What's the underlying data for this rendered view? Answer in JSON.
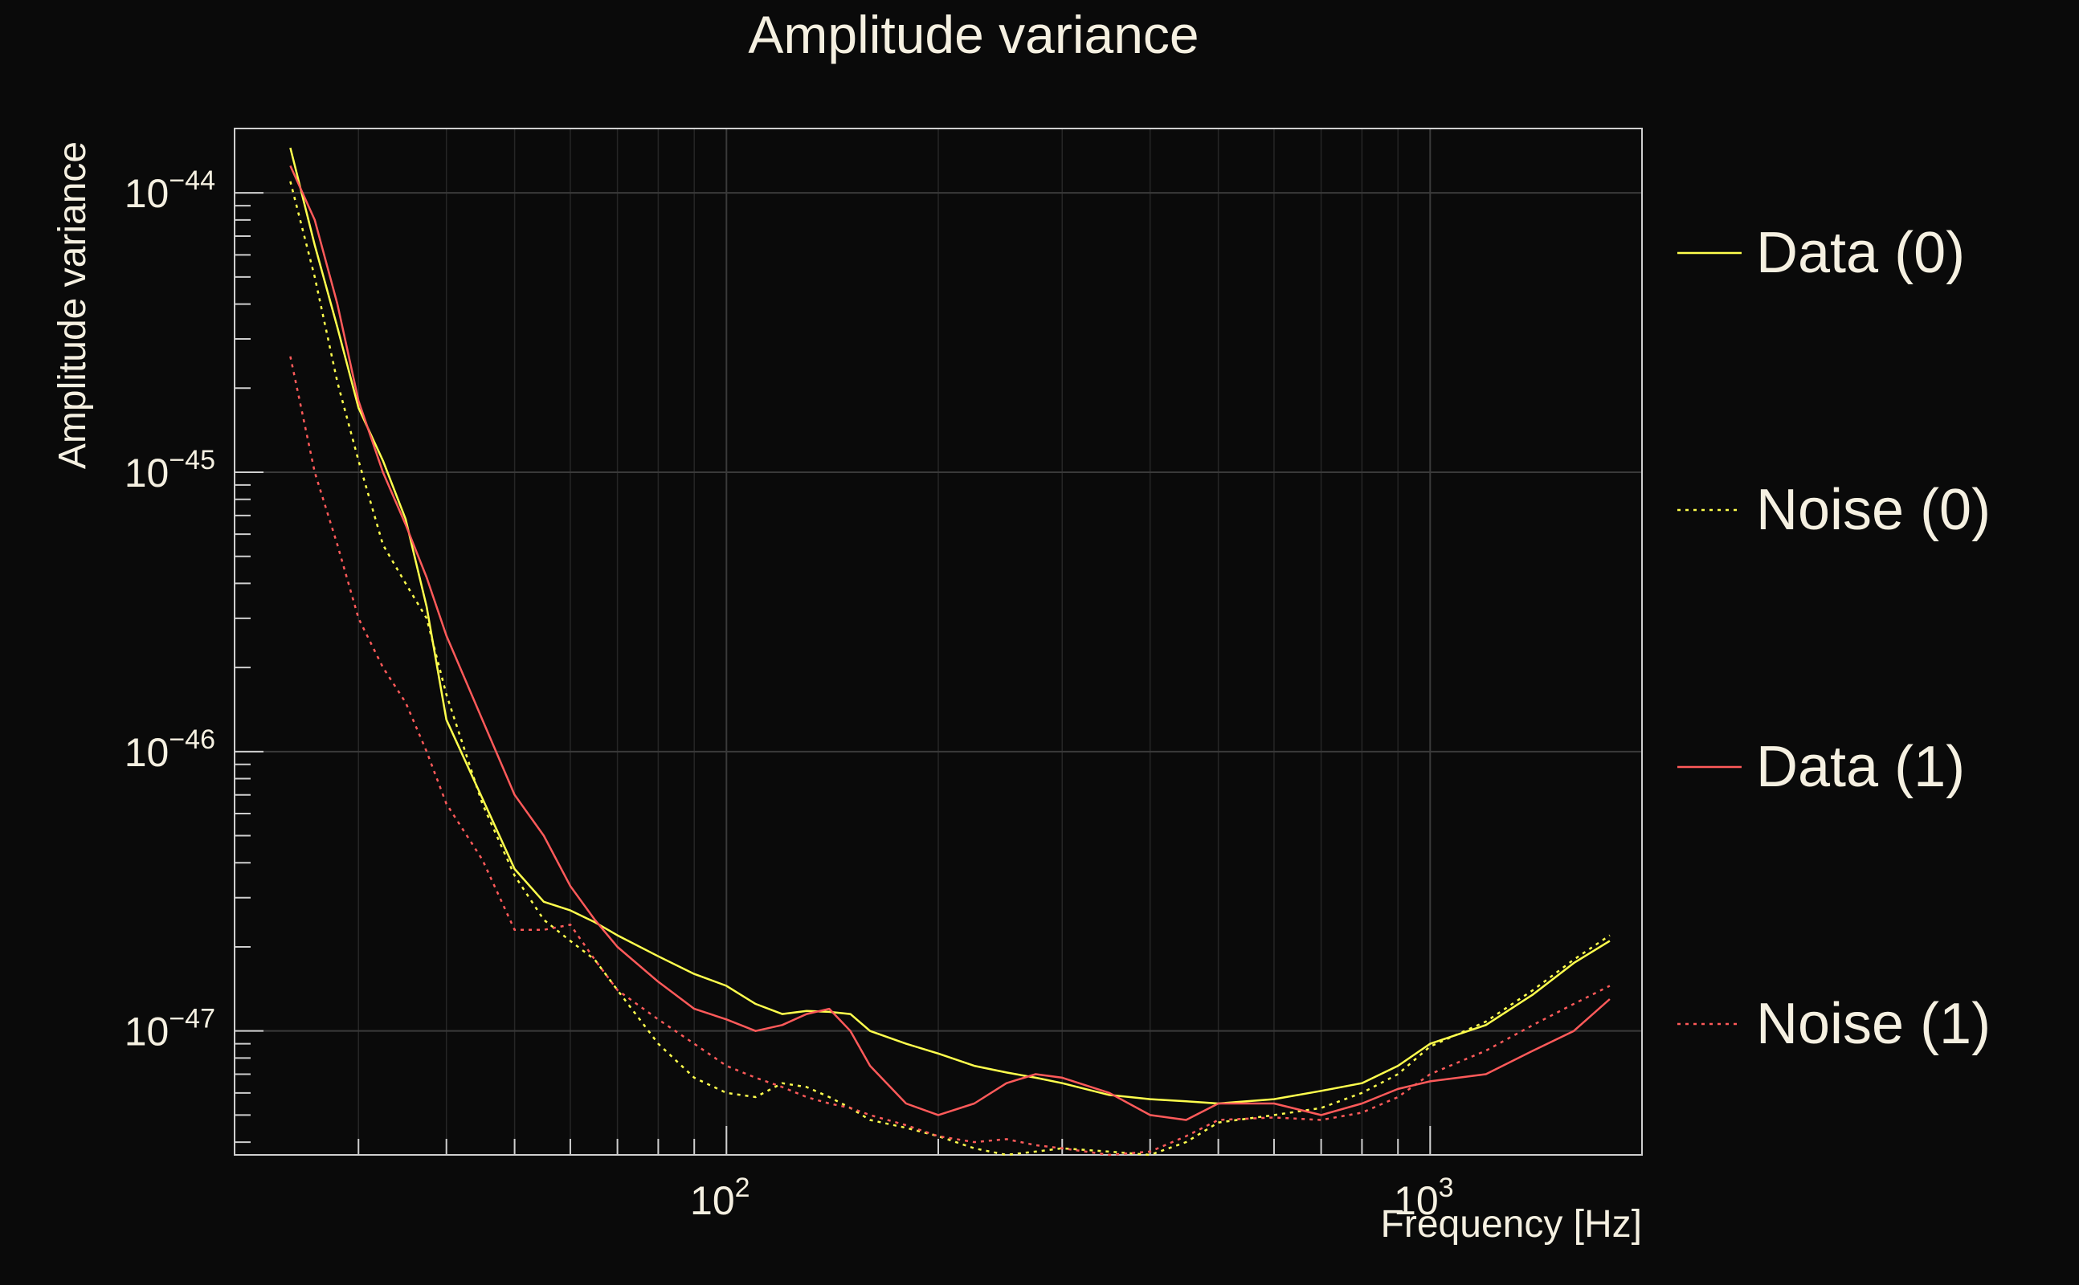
{
  "chart_data": {
    "type": "line",
    "title": "Amplitude variance",
    "xlabel": "Frequency [Hz]",
    "ylabel": "Amplitude variance",
    "x_scale": "log",
    "y_scale": "log",
    "xlim": [
      20,
      2000
    ],
    "ylim": [
      3.6e-48,
      1.7e-44
    ],
    "grid": true,
    "legend_position": "right",
    "x_ticks": [
      {
        "value": 100,
        "base": "10",
        "exp": "2"
      },
      {
        "value": 1000,
        "base": "10",
        "exp": "3"
      }
    ],
    "y_ticks": [
      {
        "value": 1e-44,
        "base": "10",
        "exp": "−44"
      },
      {
        "value": 1e-45,
        "base": "10",
        "exp": "−45"
      },
      {
        "value": 1e-46,
        "base": "10",
        "exp": "−46"
      },
      {
        "value": 1e-47,
        "base": "10",
        "exp": "−47"
      }
    ],
    "series": [
      {
        "name": "Data (0)",
        "color": "#ffff4d",
        "dash": "solid",
        "x": [
          24,
          26,
          28,
          30,
          32.5,
          35,
          37.5,
          40,
          45,
          50,
          55,
          60,
          65,
          70,
          80,
          90,
          100,
          110,
          120,
          130,
          140,
          150,
          160,
          180,
          200,
          225,
          250,
          275,
          300,
          350,
          400,
          450,
          500,
          600,
          700,
          800,
          900,
          1000,
          1200,
          1400,
          1600,
          1800
        ],
        "y": [
          1.45e-44,
          6.5e-45,
          3.3e-45,
          1.7e-45,
          1.1e-45,
          6.8e-46,
          3.3e-46,
          1.3e-46,
          6.8e-47,
          3.8e-47,
          2.9e-47,
          2.7e-47,
          2.45e-47,
          2.2e-47,
          1.85e-47,
          1.6e-47,
          1.45e-47,
          1.25e-47,
          1.15e-47,
          1.18e-47,
          1.17e-47,
          1.15e-47,
          1e-47,
          9e-48,
          8.3e-48,
          7.5e-48,
          7.1e-48,
          6.8e-48,
          6.5e-48,
          5.9e-48,
          5.7e-48,
          5.6e-48,
          5.5e-48,
          5.7e-48,
          6.1e-48,
          6.5e-48,
          7.5e-48,
          9e-48,
          1.05e-47,
          1.35e-47,
          1.75e-47,
          2.1e-47
        ]
      },
      {
        "name": "Noise (0)",
        "color": "#ffff4d",
        "dash": "dotted",
        "x": [
          24,
          26,
          28,
          30,
          32.5,
          35,
          37.5,
          40,
          45,
          50,
          55,
          60,
          65,
          70,
          80,
          90,
          100,
          110,
          120,
          130,
          140,
          150,
          160,
          180,
          200,
          225,
          250,
          275,
          300,
          350,
          400,
          450,
          500,
          600,
          700,
          800,
          900,
          1000,
          1200,
          1400,
          1600,
          1800
        ],
        "y": [
          1.1e-44,
          5e-45,
          2.1e-45,
          1.1e-45,
          5.5e-46,
          4e-46,
          3e-46,
          1.6e-46,
          6.5e-47,
          3.6e-47,
          2.5e-47,
          2.1e-47,
          1.8e-47,
          1.4e-47,
          9e-48,
          6.8e-48,
          6e-48,
          5.8e-48,
          6.5e-48,
          6.3e-48,
          5.8e-48,
          5.3e-48,
          4.8e-48,
          4.5e-48,
          4.2e-48,
          3.8e-48,
          3.6e-48,
          3.7e-48,
          3.8e-48,
          3.7e-48,
          3.6e-48,
          4e-48,
          4.7e-48,
          5e-48,
          5.3e-48,
          6e-48,
          7e-48,
          8.8e-48,
          1.08e-47,
          1.4e-47,
          1.8e-47,
          2.2e-47
        ]
      },
      {
        "name": "Data (1)",
        "color": "#ff5a5a",
        "dash": "solid",
        "x": [
          24,
          26,
          28,
          30,
          32.5,
          35,
          37.5,
          40,
          45,
          50,
          55,
          60,
          65,
          70,
          80,
          90,
          100,
          110,
          120,
          130,
          140,
          150,
          160,
          180,
          200,
          225,
          250,
          275,
          300,
          350,
          400,
          450,
          500,
          600,
          700,
          800,
          900,
          1000,
          1200,
          1400,
          1600,
          1800
        ],
        "y": [
          1.25e-44,
          8e-45,
          4e-45,
          1.8e-45,
          1e-45,
          6.5e-46,
          4.2e-46,
          2.6e-46,
          1.3e-46,
          7e-47,
          5e-47,
          3.3e-47,
          2.5e-47,
          2e-47,
          1.5e-47,
          1.2e-47,
          1.1e-47,
          1e-47,
          1.05e-47,
          1.15e-47,
          1.2e-47,
          1e-47,
          7.5e-48,
          5.5e-48,
          5e-48,
          5.5e-48,
          6.5e-48,
          7e-48,
          6.8e-48,
          6e-48,
          5e-48,
          4.8e-48,
          5.5e-48,
          5.5e-48,
          5e-48,
          5.5e-48,
          6.2e-48,
          6.6e-48,
          7e-48,
          8.5e-48,
          1e-47,
          1.3e-47
        ]
      },
      {
        "name": "Noise (1)",
        "color": "#ff5a5a",
        "dash": "dotted",
        "x": [
          24,
          26,
          28,
          30,
          32.5,
          35,
          37.5,
          40,
          45,
          50,
          55,
          60,
          65,
          70,
          80,
          90,
          100,
          110,
          120,
          130,
          140,
          150,
          160,
          180,
          200,
          225,
          250,
          275,
          300,
          350,
          400,
          450,
          500,
          600,
          700,
          800,
          900,
          1000,
          1200,
          1400,
          1600,
          1800
        ],
        "y": [
          2.6e-45,
          1e-45,
          5.5e-46,
          3e-46,
          2e-46,
          1.5e-46,
          1e-46,
          6.5e-47,
          4.1e-47,
          2.3e-47,
          2.3e-47,
          2.4e-47,
          1.8e-47,
          1.4e-47,
          1.1e-47,
          9e-48,
          7.5e-48,
          6.8e-48,
          6.3e-48,
          5.8e-48,
          5.5e-48,
          5.3e-48,
          5e-48,
          4.6e-48,
          4.2e-48,
          4e-48,
          4.1e-48,
          3.9e-48,
          3.8e-48,
          3.6e-48,
          3.7e-48,
          4.2e-48,
          4.8e-48,
          4.9e-48,
          4.8e-48,
          5.1e-48,
          5.8e-48,
          7e-48,
          8.5e-48,
          1.05e-47,
          1.25e-47,
          1.45e-47
        ]
      }
    ]
  }
}
